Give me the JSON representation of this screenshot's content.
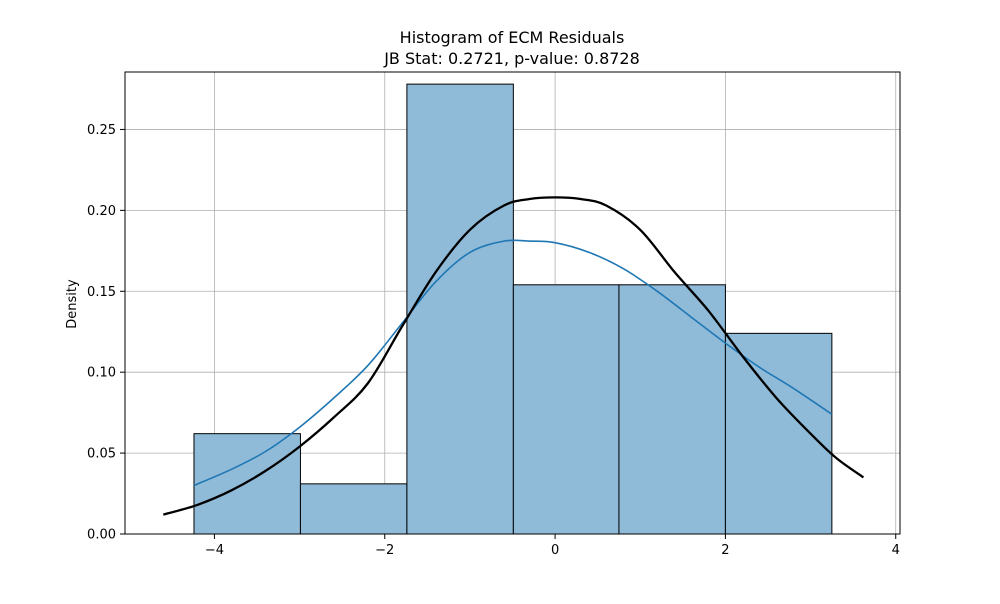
{
  "chart_data": {
    "type": "bar",
    "title": "Histogram of ECM Residuals",
    "subtitle": "JB Stat: 0.2721, p-value: 0.8728",
    "xlabel": "",
    "ylabel": "Density",
    "xlim": [
      -5.05,
      4.05
    ],
    "ylim": [
      0,
      0.2855
    ],
    "xticks": [
      -4,
      -2,
      0,
      2,
      4
    ],
    "xtick_labels": [
      "−4",
      "−2",
      "0",
      "2",
      "4"
    ],
    "yticks": [
      0.0,
      0.05,
      0.1,
      0.15,
      0.2,
      0.25
    ],
    "ytick_labels": [
      "0.00",
      "0.05",
      "0.10",
      "0.15",
      "0.20",
      "0.25"
    ],
    "grid": true,
    "bins": [
      {
        "x0": -4.24,
        "x1": -2.99,
        "density": 0.062
      },
      {
        "x0": -2.99,
        "x1": -1.74,
        "density": 0.031
      },
      {
        "x0": -1.74,
        "x1": -0.49,
        "density": 0.278
      },
      {
        "x0": -0.49,
        "x1": 0.75,
        "density": 0.154
      },
      {
        "x0": 0.75,
        "x1": 2.0,
        "density": 0.154
      },
      {
        "x0": 2.0,
        "x1": 3.25,
        "density": 0.124
      }
    ],
    "series": [
      {
        "kind": "kde",
        "x": [
          -4.24,
          -3.8,
          -3.4,
          -3.0,
          -2.6,
          -2.2,
          -1.8,
          -1.4,
          -1.0,
          -0.6,
          -0.3,
          0.0,
          0.4,
          0.8,
          1.2,
          1.6,
          2.0,
          2.4,
          2.8,
          3.25
        ],
        "y": [
          0.03,
          0.04,
          0.051,
          0.066,
          0.084,
          0.104,
          0.13,
          0.156,
          0.174,
          0.181,
          0.181,
          0.18,
          0.174,
          0.164,
          0.15,
          0.134,
          0.118,
          0.103,
          0.09,
          0.074
        ]
      },
      {
        "kind": "normal-fit",
        "x": [
          -4.6,
          -4.2,
          -3.8,
          -3.4,
          -3.0,
          -2.6,
          -2.2,
          -1.8,
          -1.4,
          -1.0,
          -0.6,
          -0.3,
          0.0,
          0.3,
          0.6,
          1.0,
          1.4,
          1.8,
          2.2,
          2.6,
          3.0,
          3.3,
          3.62
        ],
        "y": [
          0.012,
          0.018,
          0.027,
          0.039,
          0.054,
          0.072,
          0.093,
          0.128,
          0.162,
          0.188,
          0.203,
          0.207,
          0.208,
          0.207,
          0.203,
          0.188,
          0.162,
          0.138,
          0.11,
          0.084,
          0.062,
          0.047,
          0.035
        ]
      }
    ],
    "colors": {
      "bar_fill": "#8fbbd9",
      "bar_edge": "#000000",
      "kde_line": "#1f77b4",
      "normal_line": "#000000",
      "grid": "#b0b0b0"
    }
  }
}
